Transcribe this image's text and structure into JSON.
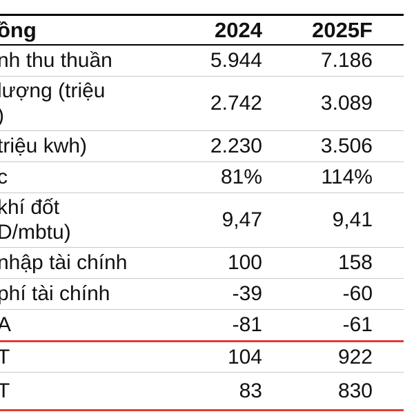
{
  "colors": {
    "red_rule": "#dd3b33",
    "gray_rule": "#c8c8c8",
    "black_rule": "#000000",
    "text": "#111111",
    "background": "#ffffff"
  },
  "table": {
    "header": {
      "label": "ồng",
      "columns": [
        "2024",
        "2025F"
      ]
    },
    "rows": [
      {
        "label": "nh thu thuần",
        "values": [
          "5.944",
          "7.186"
        ]
      },
      {
        "label": "lượng (triệu\n)",
        "values": [
          "2.742",
          "3.089"
        ]
      },
      {
        "label": "triệu kwh)",
        "values": [
          "2.230",
          "3.506"
        ]
      },
      {
        "label": "c",
        "values": [
          "81%",
          "114%"
        ]
      },
      {
        "label": "khí đốt\nD/mbtu)",
        "values": [
          "9,47",
          "9,41"
        ]
      },
      {
        "label": "nhập tài chính",
        "values": [
          "100",
          "158"
        ]
      },
      {
        "label": "phí tài chính",
        "values": [
          "-39",
          "-60"
        ]
      },
      {
        "label": "A",
        "values": [
          "-81",
          "-61"
        ]
      },
      {
        "label": "T",
        "values": [
          "104",
          "922"
        ]
      },
      {
        "label": "T",
        "values": [
          "83",
          "830"
        ]
      }
    ]
  },
  "chart_data": {
    "type": "table",
    "title": "",
    "columns": [
      "ồng",
      "2024",
      "2025F"
    ],
    "rows": [
      [
        "nh thu thuần",
        "5.944",
        "7.186"
      ],
      [
        "lượng (triệu )",
        "2.742",
        "3.089"
      ],
      [
        "triệu kwh)",
        "2.230",
        "3.506"
      ],
      [
        "c",
        "81%",
        "114%"
      ],
      [
        "khí đốt D/mbtu)",
        "9,47",
        "9,41"
      ],
      [
        "nhập tài chính",
        "100",
        "158"
      ],
      [
        "phí tài chính",
        "-39",
        "-60"
      ],
      [
        "A",
        "-81",
        "-61"
      ],
      [
        "T",
        "104",
        "922"
      ],
      [
        "T",
        "83",
        "830"
      ]
    ],
    "layout_hints": {
      "left_edge_cropped": true,
      "value_alignment": "right",
      "header_rules": "black top and bottom",
      "row_rules": "thin gray",
      "red_rules": "above last two summary rows and at table bottom"
    }
  }
}
